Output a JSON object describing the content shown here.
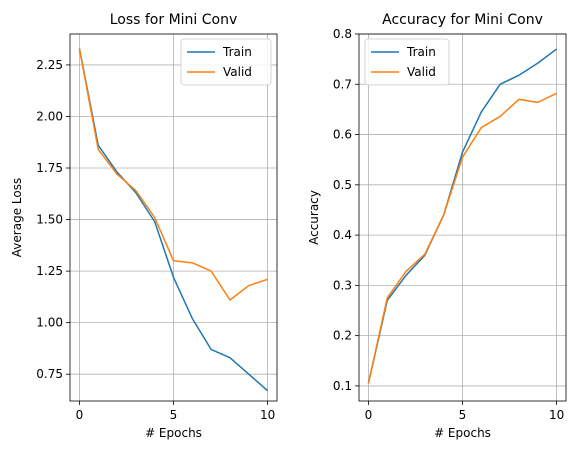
{
  "chart_data": [
    {
      "type": "line",
      "title": "Loss for Mini Conv",
      "xlabel": "# Epochs",
      "ylabel": "Average Loss",
      "xlim": [
        -0.5,
        10.5
      ],
      "ylim": [
        0.62,
        2.4
      ],
      "xticks": [
        0,
        5,
        10
      ],
      "yticks": [
        0.75,
        1.0,
        1.25,
        1.5,
        1.75,
        2.0,
        2.25
      ],
      "ytick_labels": [
        "0.75",
        "1.00",
        "1.25",
        "1.50",
        "1.75",
        "2.00",
        "2.25"
      ],
      "grid": true,
      "legend_position": "top-right",
      "x": [
        0,
        1,
        2,
        3,
        4,
        5,
        6,
        7,
        8,
        9,
        10
      ],
      "series": [
        {
          "name": "Train",
          "color": "#1f77b4",
          "values": [
            2.33,
            1.86,
            1.73,
            1.63,
            1.49,
            1.22,
            1.02,
            0.87,
            0.83,
            0.75,
            0.67
          ]
        },
        {
          "name": "Valid",
          "color": "#ff7f0e",
          "values": [
            2.33,
            1.84,
            1.72,
            1.64,
            1.51,
            1.3,
            1.29,
            1.25,
            1.11,
            1.18,
            1.21
          ]
        }
      ]
    },
    {
      "type": "line",
      "title": "Accuracy for Mini Conv",
      "xlabel": "# Epochs",
      "ylabel": "Accuracy",
      "xlim": [
        -0.5,
        10.5
      ],
      "ylim": [
        0.07,
        0.8
      ],
      "xticks": [
        0,
        5,
        10
      ],
      "yticks": [
        0.1,
        0.2,
        0.3,
        0.4,
        0.5,
        0.6,
        0.7,
        0.8
      ],
      "ytick_labels": [
        "0.1",
        "0.2",
        "0.3",
        "0.4",
        "0.5",
        "0.6",
        "0.7",
        "0.8"
      ],
      "grid": true,
      "legend_position": "top-left",
      "x": [
        0,
        1,
        2,
        3,
        4,
        5,
        6,
        7,
        8,
        9,
        10
      ],
      "series": [
        {
          "name": "Train",
          "color": "#1f77b4",
          "values": [
            0.105,
            0.27,
            0.32,
            0.36,
            0.44,
            0.565,
            0.645,
            0.7,
            0.718,
            0.742,
            0.77
          ]
        },
        {
          "name": "Valid",
          "color": "#ff7f0e",
          "values": [
            0.105,
            0.275,
            0.328,
            0.362,
            0.44,
            0.555,
            0.614,
            0.636,
            0.67,
            0.664,
            0.682
          ]
        }
      ]
    }
  ]
}
